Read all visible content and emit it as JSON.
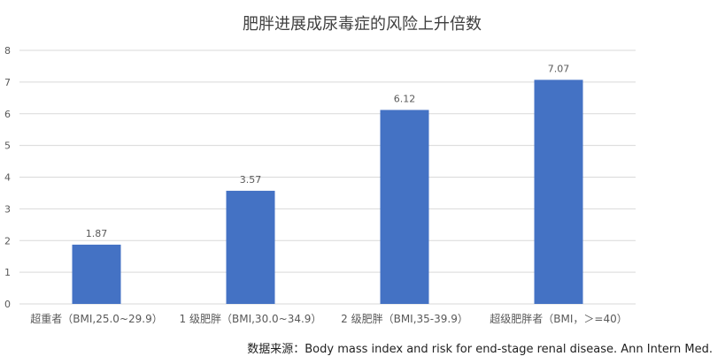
{
  "chart_data": {
    "type": "bar",
    "title": "肥胖进展成尿毒症的风险上升倍数",
    "categories": [
      "超重者（BMI,25.0~29.9）",
      "1 级肥胖（BMI,30.0~34.9）",
      "2 级肥胖（BMI,35-39.9）",
      "超级肥胖者（BMI，＞=40）"
    ],
    "values": [
      1.87,
      3.57,
      6.12,
      7.07
    ],
    "value_labels": [
      "1.87",
      "3.57",
      "6.12",
      "7.07"
    ],
    "ylim": [
      0,
      8
    ],
    "y_ticks": [
      "0",
      "1",
      "2",
      "3",
      "4",
      "5",
      "6",
      "7",
      "8"
    ],
    "xlabel": "",
    "ylabel": "",
    "grid": true,
    "legend": "none",
    "bar_color": "#4472C4",
    "grid_color": "#D9D9D9",
    "text_color": "#595959"
  },
  "source_note": "数据来源：Body mass index and risk for end-stage renal disease. Ann Intern Med."
}
